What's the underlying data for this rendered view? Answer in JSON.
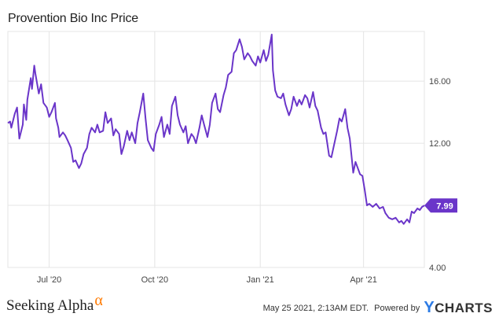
{
  "header": {
    "title": "Provention Bio Inc Price"
  },
  "footer": {
    "brand": "Seeking Alpha",
    "brand_symbol": "α",
    "date_text": "May 25 2021, 2:13AM EDT.",
    "powered_by": "Powered by",
    "logo_mark": "Y",
    "logo_text": "CHARTS"
  },
  "colors": {
    "line": "#6a35c9",
    "grid": "#e4e4e4",
    "axis_text": "#444444",
    "badge": "#6a35c9",
    "badge_text": "#ffffff"
  },
  "chart_data": {
    "type": "line",
    "title": "Provention Bio Inc Price",
    "xlabel": "",
    "ylabel": "",
    "x_range": [
      "2020-05-26",
      "2021-05-24"
    ],
    "ylim": [
      4.0,
      19.2
    ],
    "yticks": [
      4,
      8,
      12,
      16
    ],
    "ytick_labels": [
      "4.00",
      "8.00",
      "12.00",
      "16.00"
    ],
    "xticks": [
      "2020-07-01",
      "2020-10-01",
      "2021-01-01",
      "2021-04-01"
    ],
    "xtick_labels": [
      "Jul '20",
      "Oct '20",
      "Jan '21",
      "Apr '21"
    ],
    "grid": true,
    "last_value_label": "7.99",
    "series": [
      {
        "values": [
          [
            "2020-05-26",
            13.3
          ],
          [
            "2020-05-28",
            13.4
          ],
          [
            "2020-05-29",
            13.0
          ],
          [
            "2020-06-01",
            13.9
          ],
          [
            "2020-06-03",
            14.3
          ],
          [
            "2020-06-05",
            12.3
          ],
          [
            "2020-06-08",
            13.2
          ],
          [
            "2020-06-09",
            14.5
          ],
          [
            "2020-06-11",
            13.5
          ],
          [
            "2020-06-12",
            14.8
          ],
          [
            "2020-06-15",
            16.2
          ],
          [
            "2020-06-16",
            15.5
          ],
          [
            "2020-06-18",
            17.0
          ],
          [
            "2020-06-19",
            16.5
          ],
          [
            "2020-06-22",
            15.2
          ],
          [
            "2020-06-24",
            15.8
          ],
          [
            "2020-06-26",
            14.6
          ],
          [
            "2020-06-29",
            14.3
          ],
          [
            "2020-07-01",
            13.7
          ],
          [
            "2020-07-03",
            14.0
          ],
          [
            "2020-07-06",
            14.6
          ],
          [
            "2020-07-07",
            13.6
          ],
          [
            "2020-07-09",
            13.0
          ],
          [
            "2020-07-10",
            12.4
          ],
          [
            "2020-07-13",
            12.7
          ],
          [
            "2020-07-15",
            12.5
          ],
          [
            "2020-07-17",
            12.2
          ],
          [
            "2020-07-20",
            11.7
          ],
          [
            "2020-07-22",
            10.8
          ],
          [
            "2020-07-24",
            10.9
          ],
          [
            "2020-07-27",
            10.4
          ],
          [
            "2020-07-29",
            10.7
          ],
          [
            "2020-07-31",
            11.3
          ],
          [
            "2020-08-03",
            11.7
          ],
          [
            "2020-08-05",
            12.6
          ],
          [
            "2020-08-07",
            13.0
          ],
          [
            "2020-08-10",
            12.7
          ],
          [
            "2020-08-12",
            13.2
          ],
          [
            "2020-08-14",
            12.7
          ],
          [
            "2020-08-17",
            12.8
          ],
          [
            "2020-08-19",
            14.0
          ],
          [
            "2020-08-21",
            13.3
          ],
          [
            "2020-08-24",
            13.6
          ],
          [
            "2020-08-26",
            12.5
          ],
          [
            "2020-08-28",
            12.9
          ],
          [
            "2020-08-31",
            12.6
          ],
          [
            "2020-09-02",
            11.3
          ],
          [
            "2020-09-04",
            11.8
          ],
          [
            "2020-09-07",
            12.8
          ],
          [
            "2020-09-09",
            12.2
          ],
          [
            "2020-09-11",
            12.7
          ],
          [
            "2020-09-14",
            12.0
          ],
          [
            "2020-09-16",
            13.3
          ],
          [
            "2020-09-18",
            14.0
          ],
          [
            "2020-09-21",
            15.2
          ],
          [
            "2020-09-23",
            13.6
          ],
          [
            "2020-09-25",
            12.2
          ],
          [
            "2020-09-28",
            11.7
          ],
          [
            "2020-09-30",
            11.5
          ],
          [
            "2020-10-02",
            12.6
          ],
          [
            "2020-10-05",
            13.2
          ],
          [
            "2020-10-07",
            13.7
          ],
          [
            "2020-10-09",
            12.4
          ],
          [
            "2020-10-12",
            13.2
          ],
          [
            "2020-10-14",
            12.6
          ],
          [
            "2020-10-16",
            14.4
          ],
          [
            "2020-10-19",
            15.0
          ],
          [
            "2020-10-21",
            13.8
          ],
          [
            "2020-10-23",
            13.2
          ],
          [
            "2020-10-26",
            12.7
          ],
          [
            "2020-10-28",
            13.1
          ],
          [
            "2020-10-30",
            12.0
          ],
          [
            "2020-11-02",
            12.6
          ],
          [
            "2020-11-04",
            12.4
          ],
          [
            "2020-11-06",
            12.0
          ],
          [
            "2020-11-09",
            13.0
          ],
          [
            "2020-11-11",
            13.8
          ],
          [
            "2020-11-13",
            13.2
          ],
          [
            "2020-11-16",
            12.4
          ],
          [
            "2020-11-18",
            13.2
          ],
          [
            "2020-11-20",
            14.6
          ],
          [
            "2020-11-23",
            15.2
          ],
          [
            "2020-11-25",
            14.2
          ],
          [
            "2020-11-27",
            14.0
          ],
          [
            "2020-11-30",
            15.1
          ],
          [
            "2020-12-02",
            15.6
          ],
          [
            "2020-12-04",
            16.4
          ],
          [
            "2020-12-07",
            16.6
          ],
          [
            "2020-12-09",
            17.8
          ],
          [
            "2020-12-11",
            18.0
          ],
          [
            "2020-12-14",
            18.7
          ],
          [
            "2020-12-16",
            18.2
          ],
          [
            "2020-12-18",
            17.4
          ],
          [
            "2020-12-21",
            17.8
          ],
          [
            "2020-12-23",
            17.6
          ],
          [
            "2020-12-25",
            17.3
          ],
          [
            "2020-12-28",
            17.0
          ],
          [
            "2020-12-30",
            17.6
          ],
          [
            "2021-01-01",
            17.2
          ],
          [
            "2021-01-04",
            18.0
          ],
          [
            "2021-01-06",
            17.3
          ],
          [
            "2021-01-08",
            17.7
          ],
          [
            "2021-01-11",
            19.0
          ],
          [
            "2021-01-12",
            16.7
          ],
          [
            "2021-01-14",
            15.4
          ],
          [
            "2021-01-16",
            15.0
          ],
          [
            "2021-01-19",
            14.9
          ],
          [
            "2021-01-21",
            15.2
          ],
          [
            "2021-01-23",
            14.5
          ],
          [
            "2021-01-26",
            13.8
          ],
          [
            "2021-01-28",
            14.2
          ],
          [
            "2021-01-30",
            15.0
          ],
          [
            "2021-02-02",
            14.4
          ],
          [
            "2021-02-04",
            14.8
          ],
          [
            "2021-02-06",
            14.5
          ],
          [
            "2021-02-09",
            15.1
          ],
          [
            "2021-02-11",
            14.9
          ],
          [
            "2021-02-13",
            14.3
          ],
          [
            "2021-02-16",
            15.3
          ],
          [
            "2021-02-18",
            14.4
          ],
          [
            "2021-02-20",
            14.1
          ],
          [
            "2021-02-23",
            13.0
          ],
          [
            "2021-02-25",
            12.6
          ],
          [
            "2021-02-27",
            12.7
          ],
          [
            "2021-03-02",
            11.2
          ],
          [
            "2021-03-04",
            11.1
          ],
          [
            "2021-03-06",
            11.8
          ],
          [
            "2021-03-09",
            12.8
          ],
          [
            "2021-03-11",
            13.6
          ],
          [
            "2021-03-13",
            13.4
          ],
          [
            "2021-03-16",
            14.2
          ],
          [
            "2021-03-18",
            13.0
          ],
          [
            "2021-03-20",
            12.3
          ],
          [
            "2021-03-23",
            10.1
          ],
          [
            "2021-03-25",
            10.8
          ],
          [
            "2021-03-27",
            10.4
          ],
          [
            "2021-03-29",
            10.0
          ],
          [
            "2021-03-31",
            9.9
          ],
          [
            "2021-04-02",
            9.0
          ],
          [
            "2021-04-04",
            8.0
          ],
          [
            "2021-04-06",
            8.1
          ],
          [
            "2021-04-09",
            7.9
          ],
          [
            "2021-04-12",
            8.1
          ],
          [
            "2021-04-15",
            7.8
          ],
          [
            "2021-04-18",
            7.9
          ],
          [
            "2021-04-20",
            7.5
          ],
          [
            "2021-04-23",
            7.2
          ],
          [
            "2021-04-26",
            7.1
          ],
          [
            "2021-04-29",
            7.2
          ],
          [
            "2021-05-02",
            6.9
          ],
          [
            "2021-05-04",
            7.0
          ],
          [
            "2021-05-06",
            6.8
          ],
          [
            "2021-05-09",
            7.1
          ],
          [
            "2021-05-11",
            6.9
          ],
          [
            "2021-05-13",
            7.6
          ],
          [
            "2021-05-15",
            7.5
          ],
          [
            "2021-05-18",
            7.8
          ],
          [
            "2021-05-20",
            7.7
          ],
          [
            "2021-05-22",
            7.9
          ],
          [
            "2021-05-24",
            7.99
          ]
        ]
      }
    ]
  }
}
